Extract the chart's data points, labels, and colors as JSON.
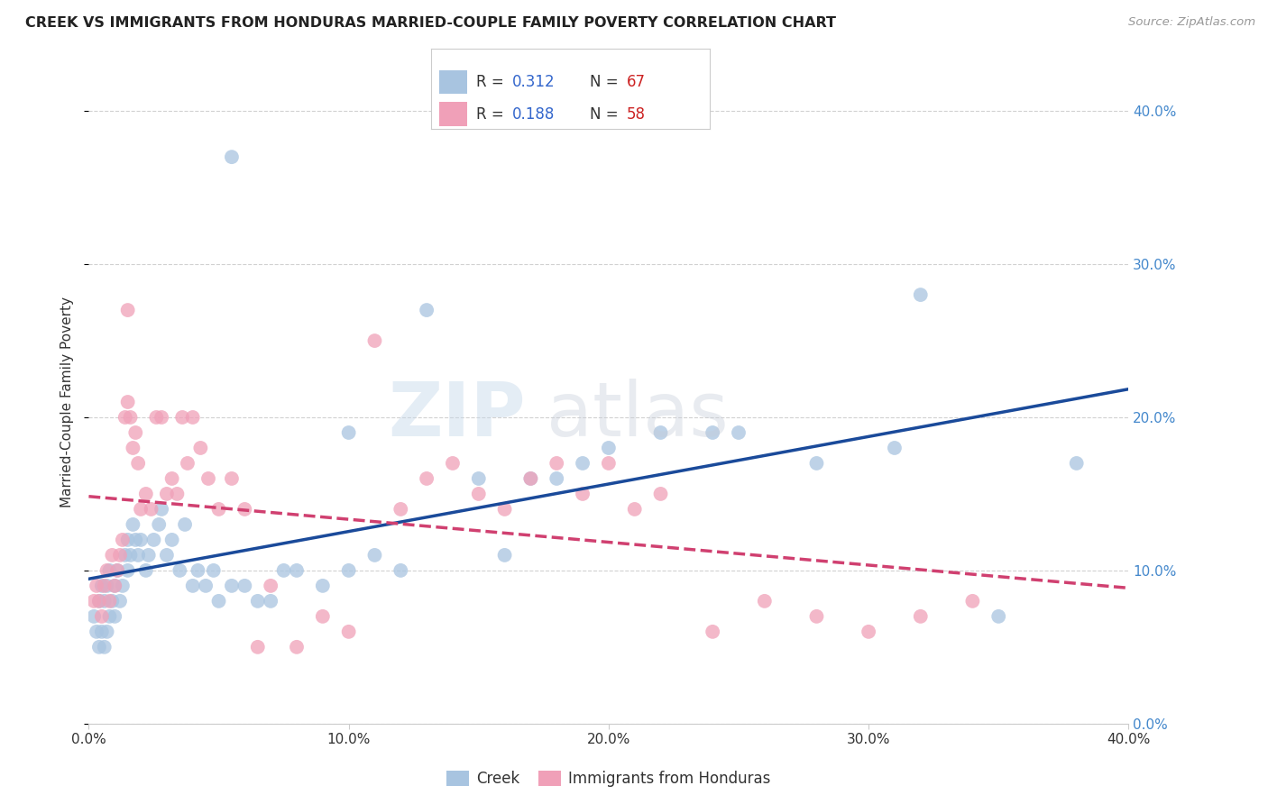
{
  "title": "CREEK VS IMMIGRANTS FROM HONDURAS MARRIED-COUPLE FAMILY POVERTY CORRELATION CHART",
  "source": "Source: ZipAtlas.com",
  "ylabel": "Married-Couple Family Poverty",
  "legend_label1": "Creek",
  "legend_label2": "Immigrants from Honduras",
  "r1": 0.312,
  "n1": 67,
  "r2": 0.188,
  "n2": 58,
  "color1": "#a8c4e0",
  "color2": "#f0a0b8",
  "line_color1": "#1a4a9a",
  "line_color2": "#d04070",
  "xmin": 0.0,
  "xmax": 0.4,
  "ymin": 0.0,
  "ymax": 0.42,
  "background_color": "#ffffff",
  "grid_color": "#cccccc",
  "creek_x": [
    0.002,
    0.003,
    0.004,
    0.004,
    0.005,
    0.005,
    0.006,
    0.006,
    0.007,
    0.007,
    0.008,
    0.008,
    0.009,
    0.01,
    0.01,
    0.011,
    0.012,
    0.013,
    0.014,
    0.015,
    0.015,
    0.016,
    0.017,
    0.018,
    0.019,
    0.02,
    0.022,
    0.023,
    0.025,
    0.027,
    0.028,
    0.03,
    0.032,
    0.035,
    0.037,
    0.04,
    0.042,
    0.045,
    0.048,
    0.05,
    0.055,
    0.06,
    0.065,
    0.07,
    0.075,
    0.08,
    0.09,
    0.1,
    0.11,
    0.12,
    0.13,
    0.15,
    0.16,
    0.17,
    0.19,
    0.2,
    0.22,
    0.25,
    0.28,
    0.32,
    0.35,
    0.38,
    0.055,
    0.1,
    0.18,
    0.24,
    0.31
  ],
  "creek_y": [
    0.07,
    0.06,
    0.05,
    0.08,
    0.06,
    0.09,
    0.05,
    0.08,
    0.06,
    0.09,
    0.07,
    0.1,
    0.08,
    0.07,
    0.09,
    0.1,
    0.08,
    0.09,
    0.11,
    0.1,
    0.12,
    0.11,
    0.13,
    0.12,
    0.11,
    0.12,
    0.1,
    0.11,
    0.12,
    0.13,
    0.14,
    0.11,
    0.12,
    0.1,
    0.13,
    0.09,
    0.1,
    0.09,
    0.1,
    0.08,
    0.09,
    0.09,
    0.08,
    0.08,
    0.1,
    0.1,
    0.09,
    0.1,
    0.11,
    0.1,
    0.27,
    0.16,
    0.11,
    0.16,
    0.17,
    0.18,
    0.19,
    0.19,
    0.17,
    0.28,
    0.07,
    0.17,
    0.37,
    0.19,
    0.16,
    0.19,
    0.18
  ],
  "honduras_x": [
    0.002,
    0.003,
    0.004,
    0.005,
    0.006,
    0.007,
    0.008,
    0.009,
    0.01,
    0.011,
    0.012,
    0.013,
    0.014,
    0.015,
    0.016,
    0.017,
    0.018,
    0.019,
    0.02,
    0.022,
    0.024,
    0.026,
    0.028,
    0.03,
    0.032,
    0.034,
    0.036,
    0.038,
    0.04,
    0.043,
    0.046,
    0.05,
    0.055,
    0.06,
    0.065,
    0.07,
    0.08,
    0.09,
    0.1,
    0.11,
    0.12,
    0.13,
    0.14,
    0.15,
    0.16,
    0.17,
    0.18,
    0.19,
    0.2,
    0.21,
    0.22,
    0.24,
    0.26,
    0.28,
    0.3,
    0.32,
    0.34,
    0.015
  ],
  "honduras_y": [
    0.08,
    0.09,
    0.08,
    0.07,
    0.09,
    0.1,
    0.08,
    0.11,
    0.09,
    0.1,
    0.11,
    0.12,
    0.2,
    0.21,
    0.2,
    0.18,
    0.19,
    0.17,
    0.14,
    0.15,
    0.14,
    0.2,
    0.2,
    0.15,
    0.16,
    0.15,
    0.2,
    0.17,
    0.2,
    0.18,
    0.16,
    0.14,
    0.16,
    0.14,
    0.05,
    0.09,
    0.05,
    0.07,
    0.06,
    0.25,
    0.14,
    0.16,
    0.17,
    0.15,
    0.14,
    0.16,
    0.17,
    0.15,
    0.17,
    0.14,
    0.15,
    0.06,
    0.08,
    0.07,
    0.06,
    0.07,
    0.08,
    0.27
  ]
}
